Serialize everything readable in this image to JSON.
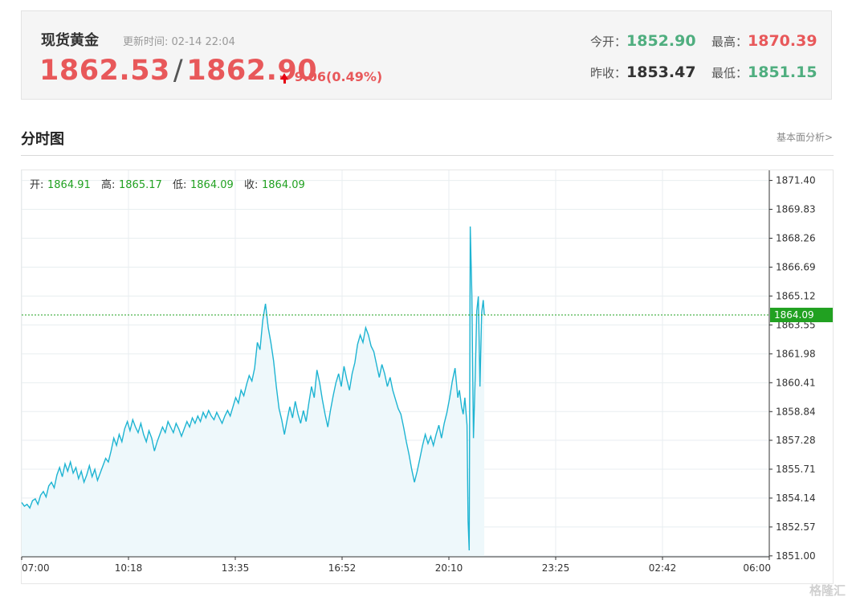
{
  "quote": {
    "name": "现货黄金",
    "update_label": "更新时间:",
    "update_time": "02-14 22:04",
    "bid": "1862.53",
    "sep": "/",
    "ask": "1862.90",
    "change": "9.06(0.49%)",
    "open_label": "今开：",
    "open": "1852.90",
    "high_label": "最高：",
    "high": "1870.39",
    "prev_close_label": "昨收：",
    "prev_close": "1853.47",
    "low_label": "最低：",
    "low": "1851.15"
  },
  "section": {
    "title": "分时图",
    "link": "基本面分析>"
  },
  "ohlc": {
    "open_label": "开:",
    "open": "1864.91",
    "high_label": "高:",
    "high": "1865.17",
    "low_label": "低:",
    "low": "1864.09",
    "close_label": "收:",
    "close": "1864.09"
  },
  "watermark": "格隆汇",
  "colors": {
    "line": "#1eb4d2",
    "area": "#eef8fb",
    "current": "#21a121",
    "up": "#e8585a",
    "down": "#4fae7f"
  },
  "chart_data": {
    "type": "area",
    "x_ticks": [
      "07:00",
      "10:18",
      "13:35",
      "16:52",
      "20:10",
      "23:25",
      "02:42",
      "06:00"
    ],
    "y_ticks": [
      1871.4,
      1869.83,
      1868.26,
      1866.69,
      1865.12,
      1863.55,
      1861.98,
      1860.41,
      1858.84,
      1857.28,
      1855.71,
      1854.14,
      1852.57,
      1851.0
    ],
    "ylim": [
      1850.95,
      1871.95
    ],
    "x_unit": "minutes since 07:00",
    "x_max": 1380,
    "current_price": 1864.09,
    "current_label": "1864.09",
    "grid": true,
    "points": [
      [
        0,
        1853.9
      ],
      [
        5,
        1853.7
      ],
      [
        10,
        1853.8
      ],
      [
        15,
        1853.6
      ],
      [
        20,
        1854.0
      ],
      [
        25,
        1854.1
      ],
      [
        30,
        1853.8
      ],
      [
        35,
        1854.3
      ],
      [
        40,
        1854.5
      ],
      [
        45,
        1854.2
      ],
      [
        50,
        1854.8
      ],
      [
        55,
        1855.0
      ],
      [
        60,
        1854.7
      ],
      [
        65,
        1855.4
      ],
      [
        70,
        1855.8
      ],
      [
        75,
        1855.3
      ],
      [
        80,
        1856.0
      ],
      [
        85,
        1855.6
      ],
      [
        90,
        1856.1
      ],
      [
        95,
        1855.5
      ],
      [
        100,
        1855.8
      ],
      [
        105,
        1855.2
      ],
      [
        110,
        1855.6
      ],
      [
        115,
        1855.0
      ],
      [
        120,
        1855.4
      ],
      [
        125,
        1855.9
      ],
      [
        130,
        1855.3
      ],
      [
        135,
        1855.7
      ],
      [
        140,
        1855.1
      ],
      [
        145,
        1855.5
      ],
      [
        150,
        1855.9
      ],
      [
        155,
        1856.3
      ],
      [
        160,
        1856.1
      ],
      [
        165,
        1856.7
      ],
      [
        170,
        1857.4
      ],
      [
        175,
        1857.0
      ],
      [
        180,
        1857.6
      ],
      [
        185,
        1857.2
      ],
      [
        190,
        1857.9
      ],
      [
        195,
        1858.3
      ],
      [
        200,
        1857.8
      ],
      [
        205,
        1858.4
      ],
      [
        210,
        1858.0
      ],
      [
        215,
        1857.7
      ],
      [
        220,
        1858.2
      ],
      [
        225,
        1857.6
      ],
      [
        230,
        1857.2
      ],
      [
        235,
        1857.8
      ],
      [
        240,
        1857.4
      ],
      [
        245,
        1856.7
      ],
      [
        250,
        1857.2
      ],
      [
        255,
        1857.6
      ],
      [
        260,
        1858.0
      ],
      [
        265,
        1857.7
      ],
      [
        270,
        1858.3
      ],
      [
        275,
        1858.0
      ],
      [
        280,
        1857.7
      ],
      [
        285,
        1858.2
      ],
      [
        290,
        1857.9
      ],
      [
        295,
        1857.5
      ],
      [
        300,
        1857.9
      ],
      [
        305,
        1858.3
      ],
      [
        310,
        1858.0
      ],
      [
        315,
        1858.5
      ],
      [
        320,
        1858.2
      ],
      [
        325,
        1858.6
      ],
      [
        330,
        1858.3
      ],
      [
        335,
        1858.8
      ],
      [
        340,
        1858.5
      ],
      [
        345,
        1858.9
      ],
      [
        350,
        1858.6
      ],
      [
        355,
        1858.4
      ],
      [
        360,
        1858.8
      ],
      [
        365,
        1858.5
      ],
      [
        370,
        1858.2
      ],
      [
        375,
        1858.6
      ],
      [
        380,
        1858.9
      ],
      [
        385,
        1858.6
      ],
      [
        390,
        1859.1
      ],
      [
        395,
        1859.6
      ],
      [
        400,
        1859.3
      ],
      [
        405,
        1860.0
      ],
      [
        410,
        1859.7
      ],
      [
        415,
        1860.3
      ],
      [
        420,
        1860.8
      ],
      [
        425,
        1860.5
      ],
      [
        430,
        1861.2
      ],
      [
        435,
        1862.6
      ],
      [
        440,
        1862.2
      ],
      [
        445,
        1863.8
      ],
      [
        450,
        1864.7
      ],
      [
        455,
        1863.4
      ],
      [
        460,
        1862.6
      ],
      [
        465,
        1861.6
      ],
      [
        470,
        1860.2
      ],
      [
        475,
        1859.0
      ],
      [
        480,
        1858.4
      ],
      [
        485,
        1857.6
      ],
      [
        490,
        1858.4
      ],
      [
        495,
        1859.1
      ],
      [
        500,
        1858.5
      ],
      [
        505,
        1859.4
      ],
      [
        510,
        1858.7
      ],
      [
        515,
        1858.2
      ],
      [
        520,
        1858.9
      ],
      [
        525,
        1858.3
      ],
      [
        530,
        1859.3
      ],
      [
        535,
        1860.2
      ],
      [
        540,
        1859.6
      ],
      [
        545,
        1861.1
      ],
      [
        550,
        1860.4
      ],
      [
        555,
        1859.5
      ],
      [
        560,
        1858.7
      ],
      [
        565,
        1858.0
      ],
      [
        570,
        1858.9
      ],
      [
        575,
        1859.7
      ],
      [
        580,
        1860.4
      ],
      [
        585,
        1860.9
      ],
      [
        590,
        1860.2
      ],
      [
        595,
        1861.3
      ],
      [
        600,
        1860.6
      ],
      [
        605,
        1860.0
      ],
      [
        610,
        1860.9
      ],
      [
        615,
        1861.5
      ],
      [
        620,
        1862.5
      ],
      [
        625,
        1863.0
      ],
      [
        630,
        1862.6
      ],
      [
        635,
        1863.4
      ],
      [
        640,
        1863.0
      ],
      [
        645,
        1862.4
      ],
      [
        650,
        1862.1
      ],
      [
        655,
        1861.4
      ],
      [
        660,
        1860.7
      ],
      [
        665,
        1861.4
      ],
      [
        670,
        1860.9
      ],
      [
        675,
        1860.2
      ],
      [
        680,
        1860.7
      ],
      [
        685,
        1860.0
      ],
      [
        690,
        1859.5
      ],
      [
        695,
        1859.0
      ],
      [
        700,
        1858.7
      ],
      [
        705,
        1858.0
      ],
      [
        710,
        1857.2
      ],
      [
        715,
        1856.5
      ],
      [
        720,
        1855.7
      ],
      [
        725,
        1855.0
      ],
      [
        730,
        1855.6
      ],
      [
        735,
        1856.3
      ],
      [
        740,
        1857.0
      ],
      [
        745,
        1857.6
      ],
      [
        750,
        1857.1
      ],
      [
        755,
        1857.5
      ],
      [
        760,
        1857.0
      ],
      [
        765,
        1857.6
      ],
      [
        770,
        1858.1
      ],
      [
        775,
        1857.4
      ],
      [
        780,
        1858.2
      ],
      [
        785,
        1858.8
      ],
      [
        790,
        1859.6
      ],
      [
        795,
        1860.5
      ],
      [
        800,
        1861.2
      ],
      [
        805,
        1859.6
      ],
      [
        808,
        1860.0
      ],
      [
        812,
        1859.1
      ],
      [
        815,
        1858.7
      ],
      [
        818,
        1859.6
      ],
      [
        822,
        1858.1
      ],
      [
        824,
        1852.9
      ],
      [
        826,
        1851.3
      ],
      [
        828,
        1868.9
      ],
      [
        831,
        1865.2
      ],
      [
        834,
        1857.4
      ],
      [
        837,
        1860.6
      ],
      [
        840,
        1864.3
      ],
      [
        843,
        1865.1
      ],
      [
        846,
        1860.2
      ],
      [
        849,
        1864.2
      ],
      [
        852,
        1864.9
      ],
      [
        854,
        1864.1
      ]
    ]
  }
}
